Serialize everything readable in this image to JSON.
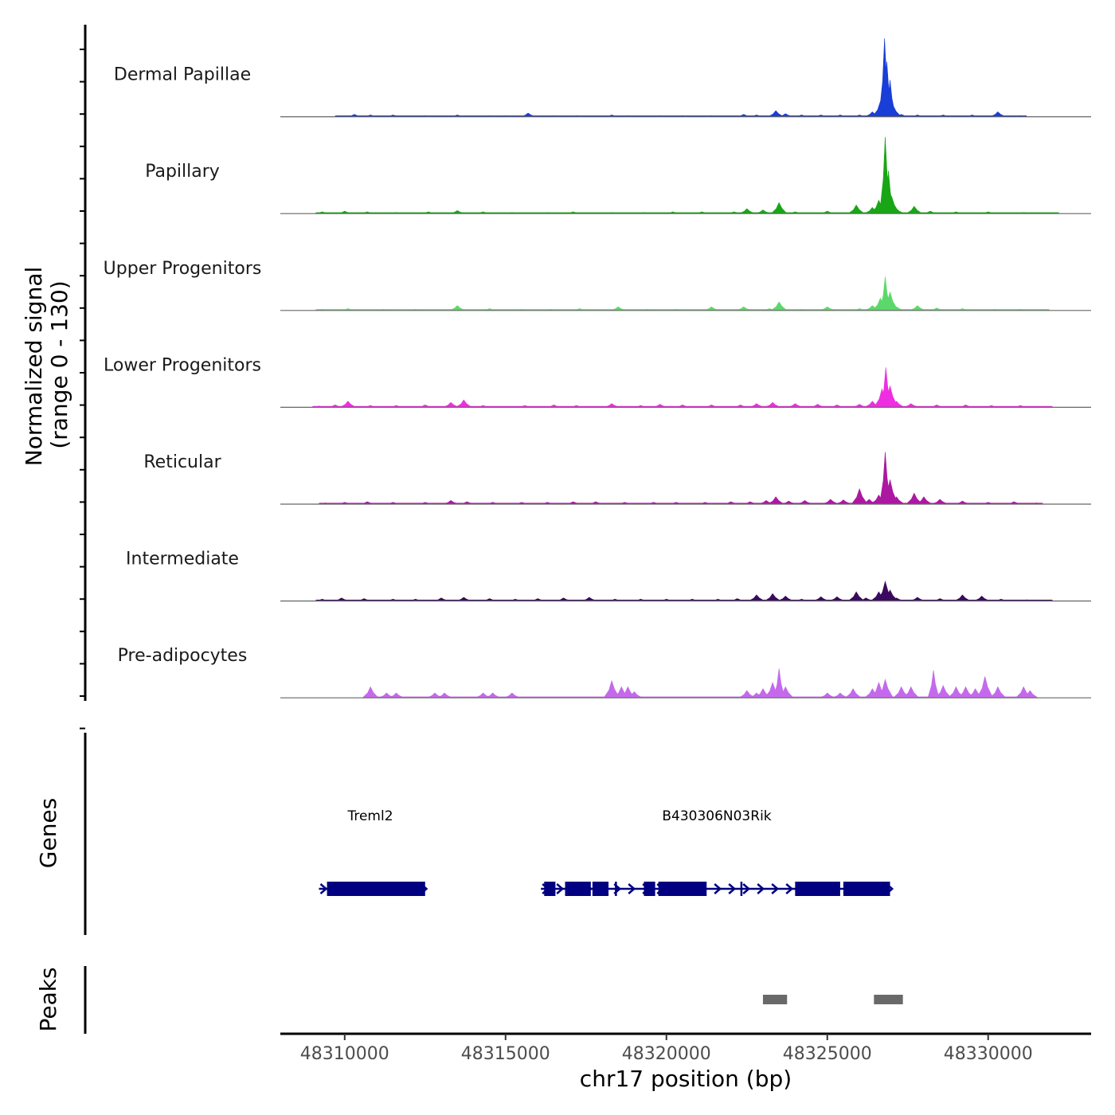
{
  "chart_data": {
    "type": "area",
    "title": "",
    "chromosome": "chr17",
    "xlabel": "chr17 position (bp)",
    "xlim": [
      48308000,
      48333200
    ],
    "x_ticks": [
      48310000,
      48315000,
      48320000,
      48325000,
      48330000
    ],
    "x_tick_labels": [
      "48310000",
      "48315000",
      "48320000",
      "48325000",
      "48330000"
    ],
    "ylabel_line1": "Normalized signal",
    "ylabel_line2": "(range 0 - 130)",
    "ylim": [
      0,
      130
    ],
    "series": [
      {
        "name": "Dermal Papillae",
        "color": "#1a3ed8",
        "points": [
          [
            48309900,
            1
          ],
          [
            48310300,
            4
          ],
          [
            48310800,
            3
          ],
          [
            48311500,
            3
          ],
          [
            48312500,
            2
          ],
          [
            48313500,
            3
          ],
          [
            48314500,
            2
          ],
          [
            48315000,
            2
          ],
          [
            48315700,
            6
          ],
          [
            48316500,
            2
          ],
          [
            48317200,
            2
          ],
          [
            48318300,
            3
          ],
          [
            48318800,
            2
          ],
          [
            48319800,
            2
          ],
          [
            48320500,
            2
          ],
          [
            48321400,
            2
          ],
          [
            48322400,
            4
          ],
          [
            48322800,
            3
          ],
          [
            48323400,
            10
          ],
          [
            48323700,
            5
          ],
          [
            48324200,
            3
          ],
          [
            48324800,
            3
          ],
          [
            48325400,
            3
          ],
          [
            48326000,
            3
          ],
          [
            48326400,
            8
          ],
          [
            48326650,
            25
          ],
          [
            48326780,
            128
          ],
          [
            48326850,
            90
          ],
          [
            48326950,
            60
          ],
          [
            48327050,
            18
          ],
          [
            48327300,
            4
          ],
          [
            48327800,
            3
          ],
          [
            48328600,
            3
          ],
          [
            48329500,
            3
          ],
          [
            48330300,
            8
          ],
          [
            48331000,
            2
          ]
        ]
      },
      {
        "name": "Papillary",
        "color": "#19a616",
        "points": [
          [
            48309300,
            3
          ],
          [
            48310000,
            4
          ],
          [
            48310700,
            3
          ],
          [
            48311600,
            2
          ],
          [
            48312600,
            3
          ],
          [
            48313500,
            5
          ],
          [
            48314300,
            3
          ],
          [
            48315200,
            2
          ],
          [
            48316300,
            2
          ],
          [
            48317100,
            3
          ],
          [
            48318300,
            2
          ],
          [
            48319300,
            2
          ],
          [
            48320200,
            3
          ],
          [
            48321100,
            3
          ],
          [
            48322100,
            3
          ],
          [
            48322500,
            8
          ],
          [
            48323000,
            6
          ],
          [
            48323500,
            18
          ],
          [
            48324000,
            3
          ],
          [
            48325000,
            4
          ],
          [
            48325900,
            14
          ],
          [
            48326400,
            10
          ],
          [
            48326600,
            22
          ],
          [
            48326800,
            125
          ],
          [
            48326900,
            70
          ],
          [
            48327000,
            28
          ],
          [
            48327150,
            8
          ],
          [
            48327700,
            12
          ],
          [
            48328200,
            4
          ],
          [
            48329000,
            3
          ],
          [
            48330000,
            3
          ],
          [
            48331100,
            2
          ],
          [
            48332000,
            1
          ]
        ]
      },
      {
        "name": "Upper Progenitors",
        "color": "#5cd86a",
        "points": [
          [
            48309300,
            2
          ],
          [
            48310100,
            3
          ],
          [
            48311200,
            2
          ],
          [
            48312200,
            2
          ],
          [
            48313500,
            8
          ],
          [
            48314500,
            3
          ],
          [
            48315500,
            2
          ],
          [
            48316400,
            2
          ],
          [
            48317300,
            3
          ],
          [
            48318500,
            6
          ],
          [
            48319400,
            2
          ],
          [
            48320300,
            2
          ],
          [
            48321400,
            6
          ],
          [
            48322400,
            6
          ],
          [
            48323200,
            3
          ],
          [
            48323500,
            14
          ],
          [
            48324200,
            2
          ],
          [
            48325000,
            6
          ],
          [
            48326000,
            3
          ],
          [
            48326400,
            8
          ],
          [
            48326650,
            20
          ],
          [
            48326800,
            55
          ],
          [
            48326950,
            30
          ],
          [
            48327150,
            6
          ],
          [
            48327800,
            8
          ],
          [
            48328400,
            4
          ],
          [
            48329200,
            3
          ],
          [
            48330200,
            2
          ],
          [
            48331000,
            2
          ],
          [
            48331700,
            1
          ]
        ]
      },
      {
        "name": "Lower Progenitors",
        "color": "#ee2ee0",
        "points": [
          [
            48309200,
            2
          ],
          [
            48309700,
            4
          ],
          [
            48310100,
            10
          ],
          [
            48310800,
            3
          ],
          [
            48311600,
            3
          ],
          [
            48312500,
            4
          ],
          [
            48313300,
            8
          ],
          [
            48313700,
            12
          ],
          [
            48314300,
            3
          ],
          [
            48315600,
            3
          ],
          [
            48316500,
            4
          ],
          [
            48317200,
            3
          ],
          [
            48318300,
            6
          ],
          [
            48319200,
            3
          ],
          [
            48319800,
            5
          ],
          [
            48320500,
            4
          ],
          [
            48321400,
            4
          ],
          [
            48322300,
            4
          ],
          [
            48322800,
            6
          ],
          [
            48323300,
            8
          ],
          [
            48324000,
            6
          ],
          [
            48324700,
            5
          ],
          [
            48325300,
            4
          ],
          [
            48326000,
            5
          ],
          [
            48326400,
            10
          ],
          [
            48326700,
            30
          ],
          [
            48326820,
            65
          ],
          [
            48326950,
            35
          ],
          [
            48327150,
            10
          ],
          [
            48327600,
            6
          ],
          [
            48328400,
            4
          ],
          [
            48329300,
            4
          ],
          [
            48330100,
            3
          ],
          [
            48331000,
            3
          ],
          [
            48331800,
            1
          ]
        ]
      },
      {
        "name": "Reticular",
        "color": "#ac18a2",
        "points": [
          [
            48309400,
            2
          ],
          [
            48310000,
            3
          ],
          [
            48310700,
            4
          ],
          [
            48311500,
            3
          ],
          [
            48312500,
            3
          ],
          [
            48313300,
            6
          ],
          [
            48313800,
            4
          ],
          [
            48314600,
            3
          ],
          [
            48315500,
            3
          ],
          [
            48316300,
            3
          ],
          [
            48317100,
            4
          ],
          [
            48317800,
            4
          ],
          [
            48318700,
            3
          ],
          [
            48319600,
            3
          ],
          [
            48320300,
            3
          ],
          [
            48321200,
            3
          ],
          [
            48322000,
            4
          ],
          [
            48322600,
            4
          ],
          [
            48323100,
            6
          ],
          [
            48323400,
            12
          ],
          [
            48323800,
            5
          ],
          [
            48324300,
            6
          ],
          [
            48325100,
            8
          ],
          [
            48325500,
            7
          ],
          [
            48326000,
            25
          ],
          [
            48326300,
            8
          ],
          [
            48326600,
            15
          ],
          [
            48326800,
            85
          ],
          [
            48326950,
            40
          ],
          [
            48327150,
            12
          ],
          [
            48327700,
            18
          ],
          [
            48328000,
            12
          ],
          [
            48328500,
            8
          ],
          [
            48329200,
            5
          ],
          [
            48330000,
            3
          ],
          [
            48330800,
            4
          ],
          [
            48331500,
            2
          ]
        ]
      },
      {
        "name": "Intermediate",
        "color": "#3b0a60",
        "points": [
          [
            48309300,
            3
          ],
          [
            48309900,
            5
          ],
          [
            48310600,
            4
          ],
          [
            48311500,
            3
          ],
          [
            48312200,
            3
          ],
          [
            48313000,
            5
          ],
          [
            48313700,
            6
          ],
          [
            48314500,
            4
          ],
          [
            48315300,
            3
          ],
          [
            48316000,
            4
          ],
          [
            48316800,
            5
          ],
          [
            48317600,
            6
          ],
          [
            48318400,
            3
          ],
          [
            48319200,
            3
          ],
          [
            48320000,
            3
          ],
          [
            48320800,
            3
          ],
          [
            48321600,
            3
          ],
          [
            48322200,
            4
          ],
          [
            48322800,
            10
          ],
          [
            48323300,
            12
          ],
          [
            48323700,
            8
          ],
          [
            48324200,
            3
          ],
          [
            48324800,
            7
          ],
          [
            48325300,
            7
          ],
          [
            48325900,
            15
          ],
          [
            48326200,
            5
          ],
          [
            48326600,
            15
          ],
          [
            48326800,
            32
          ],
          [
            48326950,
            18
          ],
          [
            48327150,
            5
          ],
          [
            48327800,
            6
          ],
          [
            48328500,
            4
          ],
          [
            48329200,
            10
          ],
          [
            48329800,
            8
          ],
          [
            48330400,
            3
          ],
          [
            48331200,
            2
          ],
          [
            48331800,
            1
          ]
        ]
      },
      {
        "name": "Pre-adipocytes",
        "color": "#c469ec",
        "points": [
          [
            48310800,
            18
          ],
          [
            48311300,
            8
          ],
          [
            48311600,
            8
          ],
          [
            48312800,
            8
          ],
          [
            48313100,
            8
          ],
          [
            48314300,
            8
          ],
          [
            48314600,
            8
          ],
          [
            48315200,
            8
          ],
          [
            48318300,
            28
          ],
          [
            48318600,
            18
          ],
          [
            48318800,
            18
          ],
          [
            48319000,
            10
          ],
          [
            48322500,
            12
          ],
          [
            48322800,
            8
          ],
          [
            48323000,
            15
          ],
          [
            48323300,
            25
          ],
          [
            48323500,
            48
          ],
          [
            48323700,
            18
          ],
          [
            48325000,
            8
          ],
          [
            48325400,
            8
          ],
          [
            48325800,
            15
          ],
          [
            48326400,
            15
          ],
          [
            48326600,
            25
          ],
          [
            48326800,
            30
          ],
          [
            48327300,
            18
          ],
          [
            48327600,
            18
          ],
          [
            48328300,
            45
          ],
          [
            48328600,
            20
          ],
          [
            48329000,
            18
          ],
          [
            48329300,
            18
          ],
          [
            48329600,
            15
          ],
          [
            48329900,
            35
          ],
          [
            48330300,
            18
          ],
          [
            48331100,
            18
          ],
          [
            48331300,
            12
          ]
        ]
      }
    ],
    "genes": [
      {
        "name": "Treml2",
        "strand": "+",
        "start": 48309200,
        "end": 48312500,
        "exons": [
          [
            48309450,
            48312500
          ]
        ]
      },
      {
        "name": "B430306N03Rik",
        "strand": "+",
        "start": 48316100,
        "end": 48326950,
        "exons": [
          [
            48316200,
            48316550
          ],
          [
            48316850,
            48317650
          ],
          [
            48317700,
            48318200
          ],
          [
            48318400,
            48318450
          ],
          [
            48319300,
            48319650
          ],
          [
            48319750,
            48321250
          ],
          [
            48322300,
            48322350
          ],
          [
            48324000,
            48325400
          ],
          [
            48325500,
            48326950
          ]
        ]
      }
    ],
    "peaks": [
      [
        48323000,
        48323750
      ],
      [
        48326450,
        48327350
      ]
    ],
    "colors": {
      "gene": "#000080",
      "peak": "#696969",
      "baseline": "#666666"
    }
  },
  "panels": {
    "genes_label": "Genes",
    "peaks_label": "Peaks"
  }
}
